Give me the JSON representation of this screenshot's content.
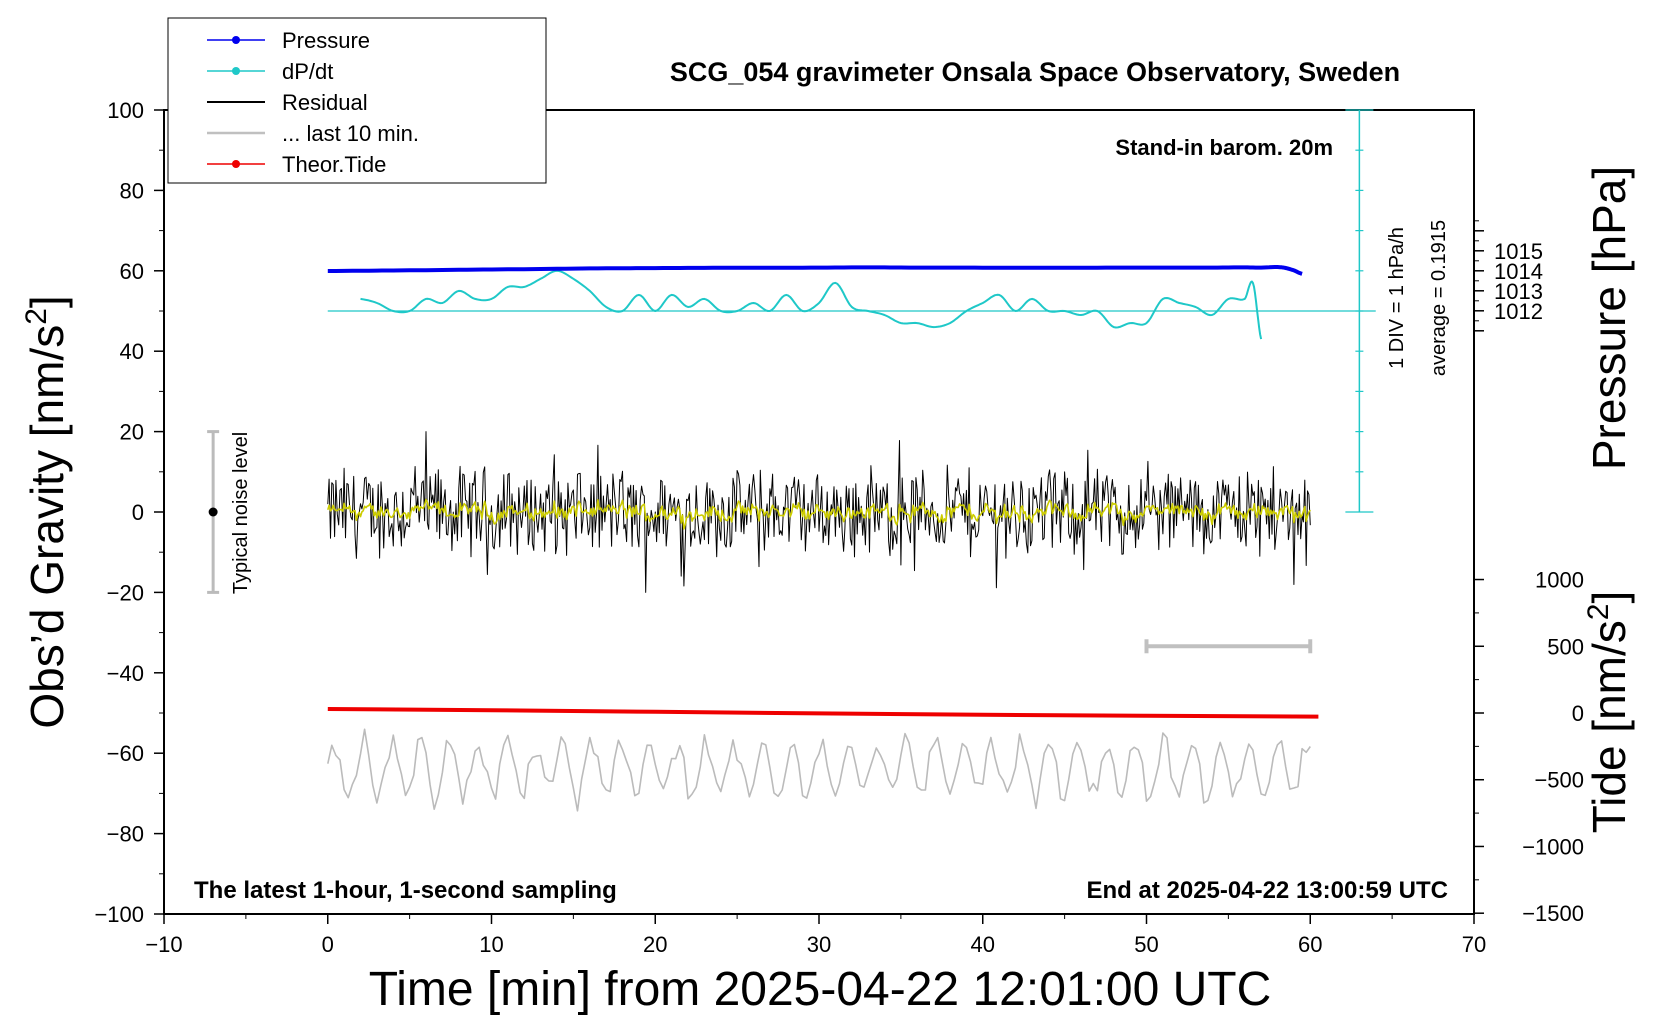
{
  "chart_data": {
    "type": "line",
    "title": "SCG_054 gravimeter Onsala Space Observatory, Sweden",
    "xlabel": "Time [min] from 2025-04-22 12:01:00 UTC",
    "ylabel_main": "Obs’d Gravity [nm/s",
    "ylabel_sup": "2",
    "ylabel_tail": "]",
    "ylabel_pressure": "Pressure [hPa]",
    "ylabel_tide_main": "Tide [nm/s",
    "ylabel_tide_sup": "2",
    "ylabel_tide_tail": "]",
    "xlim": [
      -10,
      70
    ],
    "ylim": [
      -100,
      100
    ],
    "x_ticks": [
      -10,
      0,
      10,
      20,
      30,
      40,
      50,
      60,
      70
    ],
    "y_ticks": [
      -100,
      -80,
      -60,
      -40,
      -20,
      0,
      20,
      40,
      60,
      80,
      100
    ],
    "pressure_ticks": [
      1012,
      1013,
      1014,
      1015
    ],
    "tide_ticks": [
      -1500,
      -1000,
      -500,
      0,
      500,
      1000
    ],
    "annotations": {
      "barometer": "Stand-in barom. 20m",
      "div": "1 DIV = 1 hPa/h",
      "average": "average = 0.1915",
      "noise": "Typical noise level",
      "latest": "The latest 1-hour, 1-second sampling",
      "end": "End at 2025-04-22 13:00:59 UTC"
    },
    "legend": {
      "placement": "top-left",
      "entries": [
        "Pressure",
        "dP/dt",
        "Residual",
        "... last 10 min.",
        "Theor.Tide"
      ]
    },
    "colors": {
      "pressure": "#0000ee",
      "dpdt": "#1fc8c8",
      "residual": "#000000",
      "last10": "#c0c0c0",
      "smoothed": "#cccc00",
      "tide": "#ee0000",
      "tide_grey": "#bbbbbb"
    },
    "series": [
      {
        "name": "Pressure",
        "unit": "hPa",
        "x": [
          0,
          3,
          6,
          9,
          12,
          15,
          18,
          21,
          24,
          27,
          30,
          33,
          36,
          39,
          42,
          45,
          48,
          51,
          54,
          56,
          57,
          58,
          58.5,
          59,
          59.5
        ],
        "values": [
          1013.99,
          1014.01,
          1014.03,
          1014.06,
          1014.08,
          1014.11,
          1014.13,
          1014.14,
          1014.15,
          1014.15,
          1014.16,
          1014.17,
          1014.16,
          1014.16,
          1014.15,
          1014.15,
          1014.16,
          1014.16,
          1014.16,
          1014.17,
          1014.16,
          1014.19,
          1014.14,
          1014.02,
          1013.85
        ]
      },
      {
        "name": "dP/dt",
        "unit": "nm/s2 plot units",
        "x": [
          2,
          3,
          4,
          5,
          6,
          7,
          8,
          9,
          10,
          11,
          12,
          13,
          14,
          15,
          16,
          17,
          18,
          19,
          20,
          21,
          22,
          23,
          24,
          25,
          26,
          27,
          28,
          29,
          30,
          31,
          32,
          33,
          34,
          35,
          36,
          37,
          38,
          39,
          40,
          41,
          42,
          43,
          44,
          45,
          46,
          47,
          48,
          49,
          50,
          51,
          52,
          53,
          54,
          55,
          56,
          56.5,
          57
        ],
        "values": [
          53,
          52,
          50,
          50,
          53,
          52,
          55,
          53,
          53,
          56,
          56,
          58,
          60,
          58,
          55,
          51,
          50,
          54,
          50,
          54,
          51,
          53,
          50,
          50,
          52,
          50,
          54,
          50,
          52,
          57,
          51,
          50,
          49,
          47,
          47,
          46,
          47,
          50,
          52,
          54,
          50,
          53,
          50,
          50,
          49,
          50,
          46,
          47,
          47,
          53,
          52,
          51,
          49,
          53,
          53,
          57,
          43
        ]
      },
      {
        "name": "Theor.Tide",
        "unit": "nm/s2",
        "x": [
          0,
          10,
          20,
          30,
          40,
          50,
          60.5
        ],
        "values": [
          -5,
          -20,
          -40,
          -60,
          -78,
          -90,
          -100
        ]
      }
    ],
    "dpdt_baseline": 50,
    "dpdt_scale_range": [
      0,
      100
    ],
    "residual": {
      "x_range": [
        0,
        60
      ],
      "amplitude_range": [
        -20,
        20
      ],
      "smoothed_amplitude": 5
    },
    "grey_trace": {
      "x_range": [
        0,
        60
      ],
      "center": -64,
      "amplitude": 8
    },
    "noise_bar": {
      "x": -7,
      "low": -20,
      "high": 20,
      "center": 0
    },
    "last10_bar": {
      "x_start": 50,
      "x_end": 60,
      "y_tide": 500
    }
  }
}
